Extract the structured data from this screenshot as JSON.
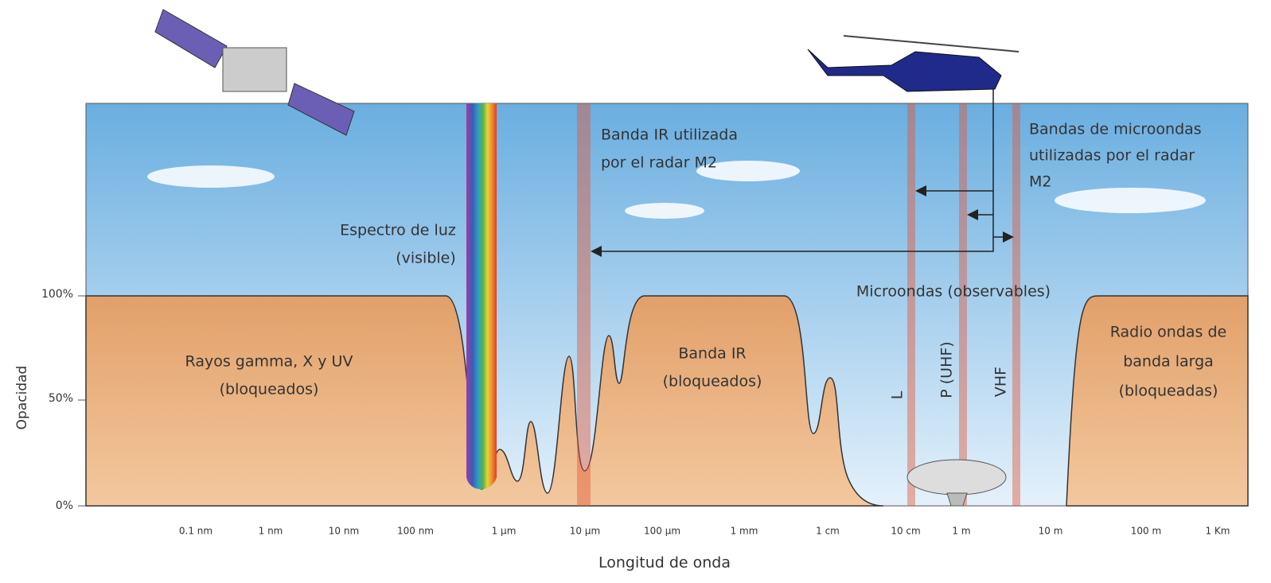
{
  "axis": {
    "y_label": "Opacidad",
    "y_ticks": [
      "100%",
      "50%",
      "0%"
    ],
    "x_label": "Longitud de onda",
    "x_ticks": [
      "0.1 nm",
      "1 nm",
      "10 nm",
      "100 nm",
      "1 µm",
      "10 µm",
      "100 µm",
      "1 mm",
      "1 cm",
      "10 cm",
      "1 m",
      "10 m",
      "100 m",
      "1 Km"
    ]
  },
  "labels": {
    "gamma": [
      "Rayos gamma, X y UV",
      "(bloqueados)"
    ],
    "visible": [
      "Espectro de luz",
      "(visible)"
    ],
    "ir_radar": [
      "Banda IR utilizada",
      "por el radar M2"
    ],
    "ir": [
      "Banda IR",
      "(bloqueados)"
    ],
    "microwave_radar": [
      "Bandas de microondas",
      "utilizadas por el radar",
      "M2"
    ],
    "microwave": "Microondas (observables)",
    "bands": [
      "L",
      "P (UHF)",
      "VHF"
    ],
    "radio": [
      "Radio ondas de",
      "banda larga",
      "(bloqueadas)"
    ]
  }
}
